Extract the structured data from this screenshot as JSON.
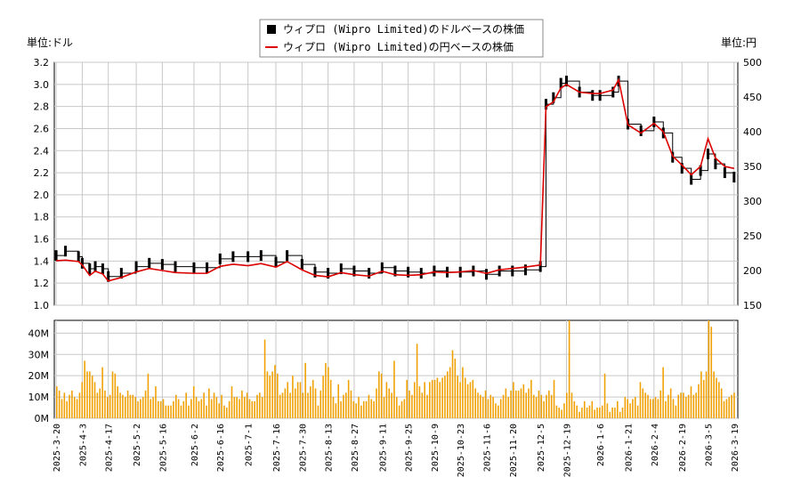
{
  "chart_data": [
    {
      "type": "line",
      "legend": {
        "placement": "top-center",
        "entries": [
          {
            "label": "ウィプロ (Wipro Limited)のドルベースの株価",
            "marker": "black-square",
            "color": "#000000"
          },
          {
            "label": "ウィプロ (Wipro Limited)の円ベースの株価",
            "marker": "red-line",
            "color": "#dd0000"
          }
        ]
      },
      "left_unit_label": "単位:ドル",
      "right_unit_label": "単位:円",
      "y_left": {
        "min": 1.0,
        "max": 3.2,
        "ticks": [
          "1.0",
          "1.2",
          "1.4",
          "1.6",
          "1.8",
          "2.0",
          "2.2",
          "2.4",
          "2.6",
          "2.8",
          "3.0",
          "3.2"
        ]
      },
      "y_right": {
        "min": 150,
        "max": 500,
        "ticks": [
          "150",
          "200",
          "250",
          "300",
          "350",
          "400",
          "450",
          "500"
        ]
      },
      "x_dates": [
        "2025-3-20",
        "2025-4-3",
        "2025-4-17",
        "2025-5-2",
        "2025-5-16",
        "2025-6-2",
        "2025-6-16",
        "2025-7-1",
        "2025-7-16",
        "2025-7-30",
        "2025-8-13",
        "2025-8-27",
        "2025-9-11",
        "2025-9-25",
        "2025-10-9",
        "2025-10-23",
        "2025-11-6",
        "2025-11-20",
        "2025-12-5",
        "2025-12-19",
        "2026-1-6",
        "2026-1-21",
        "2026-2-4",
        "2026-2-19",
        "2026-3-5",
        "2026-3-19"
      ],
      "grid": true,
      "series": [
        {
          "name": "ウィプロ (Wipro Limited)のドルベースの株価",
          "color": "#000000",
          "points": [
            [
              "2025-3-20",
              1.45
            ],
            [
              "2025-3-25",
              1.49
            ],
            [
              "2025-4-1",
              1.44
            ],
            [
              "2025-4-3",
              1.38
            ],
            [
              "2025-4-7",
              1.33
            ],
            [
              "2025-4-10",
              1.35
            ],
            [
              "2025-4-14",
              1.33
            ],
            [
              "2025-4-17",
              1.26
            ],
            [
              "2025-4-24",
              1.29
            ],
            [
              "2025-5-2",
              1.35
            ],
            [
              "2025-5-9",
              1.38
            ],
            [
              "2025-5-16",
              1.37
            ],
            [
              "2025-5-23",
              1.35
            ],
            [
              "2025-6-2",
              1.34
            ],
            [
              "2025-6-9",
              1.34
            ],
            [
              "2025-6-16",
              1.42
            ],
            [
              "2025-6-23",
              1.44
            ],
            [
              "2025-7-1",
              1.44
            ],
            [
              "2025-7-8",
              1.45
            ],
            [
              "2025-7-16",
              1.39
            ],
            [
              "2025-7-22",
              1.45
            ],
            [
              "2025-7-30",
              1.37
            ],
            [
              "2025-8-6",
              1.3
            ],
            [
              "2025-8-13",
              1.29
            ],
            [
              "2025-8-20",
              1.33
            ],
            [
              "2025-8-27",
              1.31
            ],
            [
              "2025-9-4",
              1.29
            ],
            [
              "2025-9-11",
              1.34
            ],
            [
              "2025-9-18",
              1.31
            ],
            [
              "2025-9-25",
              1.3
            ],
            [
              "2025-10-2",
              1.29
            ],
            [
              "2025-10-9",
              1.31
            ],
            [
              "2025-10-16",
              1.3
            ],
            [
              "2025-10-23",
              1.3
            ],
            [
              "2025-10-30",
              1.31
            ],
            [
              "2025-11-6",
              1.28
            ],
            [
              "2025-11-13",
              1.31
            ],
            [
              "2025-11-20",
              1.31
            ],
            [
              "2025-11-27",
              1.32
            ],
            [
              "2025-12-5",
              1.35
            ],
            [
              "2025-12-8",
              2.82
            ],
            [
              "2025-12-12",
              2.88
            ],
            [
              "2025-12-16",
              3.01
            ],
            [
              "2025-12-19",
              3.03
            ],
            [
              "2025-12-26",
              2.93
            ],
            [
              "2026-1-2",
              2.9
            ],
            [
              "2026-1-6",
              2.9
            ],
            [
              "2026-1-13",
              2.93
            ],
            [
              "2026-1-16",
              3.03
            ],
            [
              "2026-1-21",
              2.64
            ],
            [
              "2026-1-28",
              2.58
            ],
            [
              "2026-2-4",
              2.66
            ],
            [
              "2026-2-9",
              2.56
            ],
            [
              "2026-2-14",
              2.34
            ],
            [
              "2026-2-19",
              2.24
            ],
            [
              "2026-2-24",
              2.14
            ],
            [
              "2026-3-1",
              2.22
            ],
            [
              "2026-3-5",
              2.37
            ],
            [
              "2026-3-9",
              2.28
            ],
            [
              "2026-3-14",
              2.2
            ],
            [
              "2026-3-19",
              2.16
            ]
          ]
        },
        {
          "name": "ウィプロ (Wipro Limited)の円ベースの株価",
          "color": "#dd0000",
          "points": [
            [
              "2025-3-20",
              214
            ],
            [
              "2025-3-25",
              215
            ],
            [
              "2025-4-1",
              213
            ],
            [
              "2025-4-3",
              208
            ],
            [
              "2025-4-7",
              193
            ],
            [
              "2025-4-10",
              199
            ],
            [
              "2025-4-14",
              195
            ],
            [
              "2025-4-17",
              185
            ],
            [
              "2025-4-24",
              190
            ],
            [
              "2025-5-2",
              198
            ],
            [
              "2025-5-9",
              203
            ],
            [
              "2025-5-16",
              200
            ],
            [
              "2025-5-23",
              197
            ],
            [
              "2025-6-2",
              196
            ],
            [
              "2025-6-9",
              196
            ],
            [
              "2025-6-16",
              206
            ],
            [
              "2025-6-23",
              209
            ],
            [
              "2025-7-1",
              207
            ],
            [
              "2025-7-8",
              210
            ],
            [
              "2025-7-16",
              205
            ],
            [
              "2025-7-22",
              213
            ],
            [
              "2025-7-30",
              201
            ],
            [
              "2025-8-6",
              193
            ],
            [
              "2025-8-13",
              191
            ],
            [
              "2025-8-20",
              197
            ],
            [
              "2025-8-27",
              194
            ],
            [
              "2025-9-4",
              192
            ],
            [
              "2025-9-11",
              199
            ],
            [
              "2025-9-18",
              194
            ],
            [
              "2025-9-25",
              193
            ],
            [
              "2025-10-2",
              194
            ],
            [
              "2025-10-9",
              198
            ],
            [
              "2025-10-16",
              197
            ],
            [
              "2025-10-23",
              198
            ],
            [
              "2025-10-30",
              200
            ],
            [
              "2025-11-6",
              196
            ],
            [
              "2025-11-13",
              201
            ],
            [
              "2025-11-20",
              203
            ],
            [
              "2025-11-27",
              205
            ],
            [
              "2025-12-5",
              208
            ],
            [
              "2025-12-8",
              436
            ],
            [
              "2025-12-12",
              443
            ],
            [
              "2025-12-16",
              463
            ],
            [
              "2025-12-19",
              468
            ],
            [
              "2025-12-26",
              457
            ],
            [
              "2026-1-2",
              455
            ],
            [
              "2026-1-6",
              455
            ],
            [
              "2026-1-13",
              460
            ],
            [
              "2026-1-16",
              475
            ],
            [
              "2026-1-21",
              410
            ],
            [
              "2026-1-28",
              398
            ],
            [
              "2026-2-4",
              412
            ],
            [
              "2026-2-9",
              400
            ],
            [
              "2026-2-14",
              365
            ],
            [
              "2026-2-19",
              352
            ],
            [
              "2026-2-24",
              338
            ],
            [
              "2026-3-1",
              350
            ],
            [
              "2026-3-5",
              390
            ],
            [
              "2026-3-9",
              362
            ],
            [
              "2026-3-14",
              350
            ],
            [
              "2026-3-19",
              347
            ]
          ]
        }
      ]
    },
    {
      "type": "bar",
      "series_color": "#f0a000",
      "y": {
        "min": 0,
        "max": 46000000,
        "ticks": [
          "0M",
          "10M",
          "20M",
          "30M",
          "40M"
        ]
      },
      "x_dates": [
        "2025-3-20",
        "2025-4-3",
        "2025-4-17",
        "2025-5-2",
        "2025-5-16",
        "2025-6-2",
        "2025-6-16",
        "2025-7-1",
        "2025-7-16",
        "2025-7-30",
        "2025-8-13",
        "2025-8-27",
        "2025-9-11",
        "2025-9-25",
        "2025-10-9",
        "2025-10-23",
        "2025-11-6",
        "2025-11-20",
        "2025-12-5",
        "2025-12-19",
        "2026-1-6",
        "2026-1-21",
        "2026-2-4",
        "2026-2-19",
        "2026-3-5",
        "2026-3-19"
      ],
      "grid": true,
      "volume_millions": [
        15,
        13,
        9,
        12,
        8,
        11,
        13,
        10,
        9,
        12,
        17,
        27,
        22,
        22,
        20,
        17,
        12,
        14,
        24,
        13,
        10,
        11,
        22,
        21,
        15,
        12,
        11,
        10,
        13,
        11,
        11,
        10,
        8,
        9,
        10,
        13,
        21,
        9,
        10,
        15,
        8,
        8,
        9,
        6,
        6,
        6,
        8,
        11,
        9,
        6,
        8,
        12,
        6,
        9,
        15,
        10,
        8,
        9,
        12,
        6,
        14,
        9,
        12,
        10,
        7,
        11,
        6,
        5,
        8,
        15,
        10,
        10,
        9,
        13,
        10,
        12,
        9,
        8,
        8,
        11,
        12,
        10,
        37,
        22,
        20,
        22,
        25,
        21,
        11,
        12,
        14,
        17,
        12,
        20,
        14,
        17,
        17,
        12,
        26,
        12,
        15,
        18,
        14,
        6,
        13,
        20,
        26,
        24,
        18,
        10,
        7,
        16,
        8,
        11,
        12,
        18,
        13,
        8,
        7,
        10,
        6,
        8,
        8,
        11,
        9,
        8,
        14,
        22,
        21,
        10,
        17,
        14,
        12,
        27,
        10,
        6,
        8,
        9,
        18,
        13,
        11,
        17,
        35,
        15,
        12,
        17,
        11,
        17,
        18,
        18,
        19,
        17,
        19,
        20,
        22,
        24,
        32,
        28,
        20,
        17,
        24,
        19,
        16,
        17,
        18,
        14,
        12,
        11,
        10,
        13,
        9,
        11,
        10,
        7,
        6,
        9,
        11,
        14,
        10,
        13,
        17,
        13,
        13,
        14,
        16,
        12,
        14,
        18,
        11,
        10,
        13,
        11,
        8,
        11,
        13,
        11,
        18,
        6,
        5,
        4,
        7,
        12,
        46,
        12,
        8,
        6,
        3,
        5,
        8,
        5,
        6,
        8,
        4,
        5,
        5,
        6,
        21,
        7,
        3,
        5,
        5,
        8,
        3,
        5,
        10,
        9,
        7,
        9,
        10,
        6,
        17,
        14,
        12,
        11,
        9,
        9,
        10,
        9,
        13,
        24,
        8,
        11,
        14,
        9,
        6,
        11,
        12,
        12,
        10,
        11,
        15,
        11,
        12,
        16,
        22,
        18,
        22,
        46,
        43,
        22,
        19,
        17,
        14,
        8,
        9,
        10,
        11,
        12
      ]
    }
  ]
}
